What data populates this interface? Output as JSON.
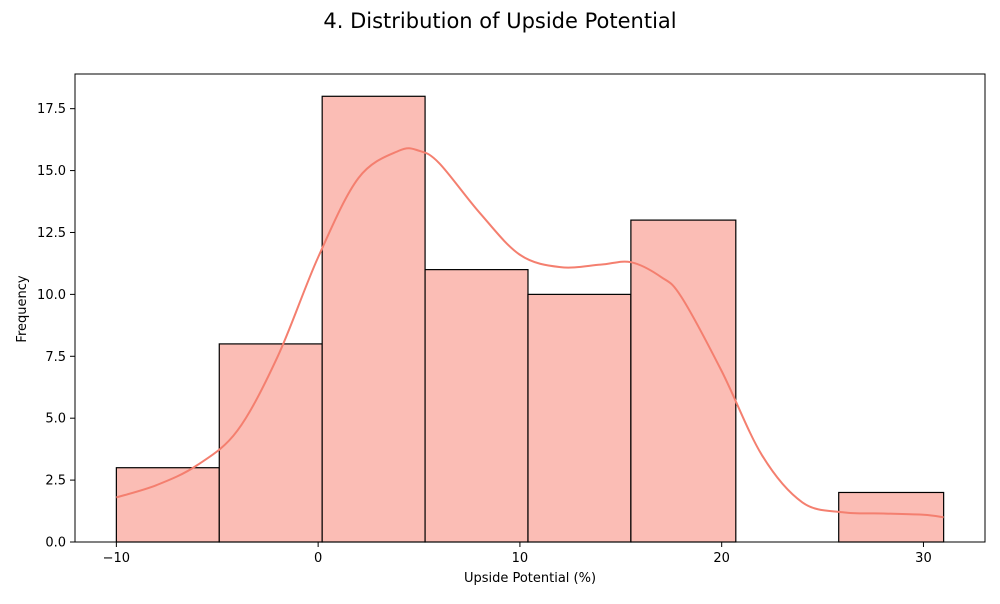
{
  "chart_data": {
    "type": "histogram",
    "title": "4. Distribution of Upside Potential",
    "xlabel": "Upside Potential (%)",
    "ylabel": "Frequency",
    "xlim": [
      -12.05,
      33.05
    ],
    "ylim": [
      0,
      18.9
    ],
    "xticks": [
      -10,
      0,
      10,
      20,
      30
    ],
    "xtick_labels": [
      "−10",
      "0",
      "10",
      "20",
      "30"
    ],
    "yticks": [
      0,
      2.5,
      5,
      7.5,
      10,
      12.5,
      15,
      17.5
    ],
    "ytick_labels": [
      "0.0",
      "2.5",
      "5.0",
      "7.5",
      "10.0",
      "12.5",
      "15.0",
      "17.5"
    ],
    "bins": [
      {
        "x0": -10.0,
        "x1": -4.9,
        "count": 3
      },
      {
        "x0": -4.9,
        "x1": 0.2,
        "count": 8
      },
      {
        "x0": 0.2,
        "x1": 5.3,
        "count": 18
      },
      {
        "x0": 5.3,
        "x1": 10.4,
        "count": 11
      },
      {
        "x0": 10.4,
        "x1": 15.5,
        "count": 10
      },
      {
        "x0": 15.5,
        "x1": 20.7,
        "count": 13
      },
      {
        "x0": 20.7,
        "x1": 25.8,
        "count": 0
      },
      {
        "x0": 25.8,
        "x1": 31.0,
        "count": 2
      }
    ],
    "kde": {
      "x": [
        -10,
        -8,
        -6,
        -4,
        -2,
        0,
        2,
        4,
        5,
        6,
        8,
        10,
        12,
        14,
        15.5,
        17,
        18,
        20,
        22,
        24,
        26,
        28,
        30,
        31
      ],
      "y": [
        1.8,
        2.3,
        3.1,
        4.5,
        7.5,
        11.5,
        14.7,
        15.8,
        15.8,
        15.3,
        13.3,
        11.6,
        11.1,
        11.2,
        11.3,
        10.7,
        9.9,
        6.9,
        3.5,
        1.6,
        1.2,
        1.15,
        1.1,
        1.0
      ]
    },
    "bar_color": "#fbbdb5",
    "bar_edge_color": "#000000",
    "kde_color": "#f47f6f",
    "grid": false,
    "legend": "none"
  }
}
